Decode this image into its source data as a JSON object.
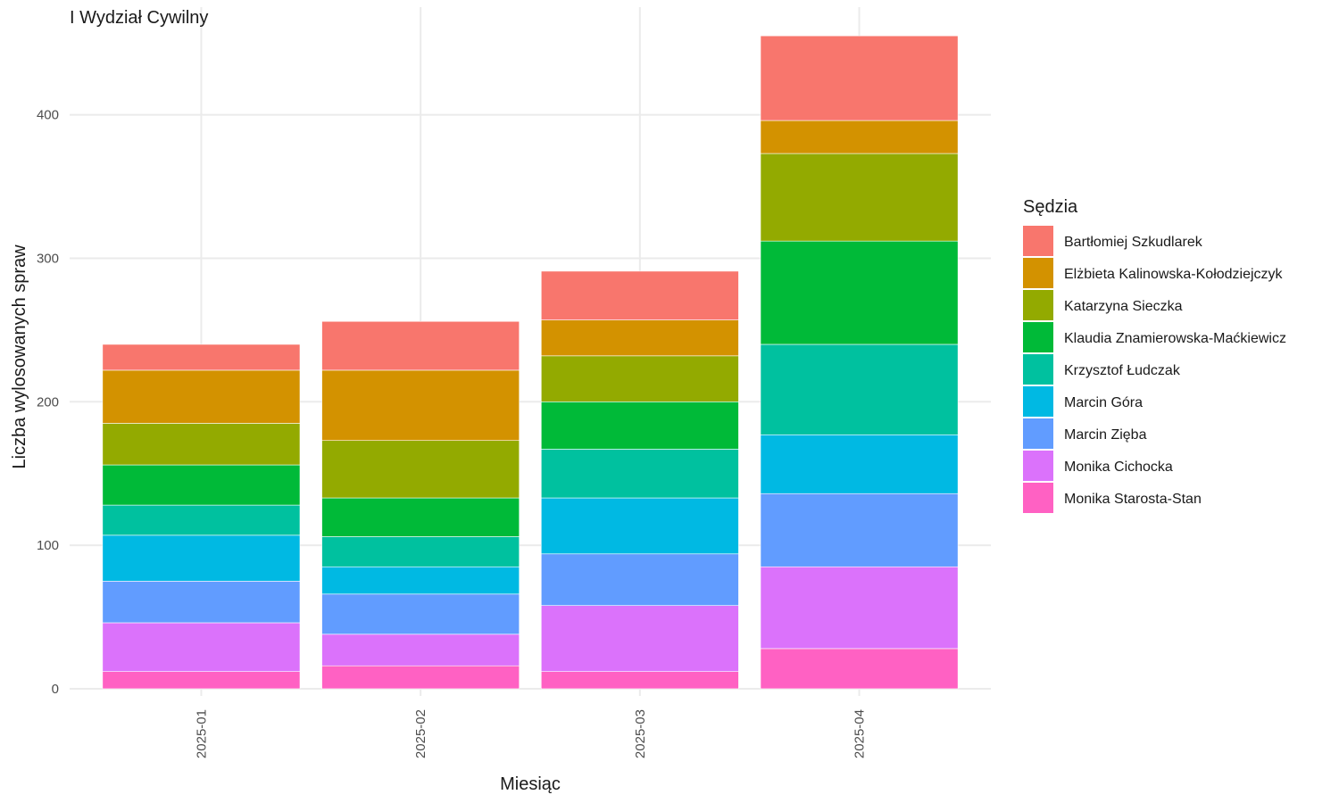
{
  "chart_data": {
    "type": "bar",
    "stacked": true,
    "title": "I Wydział Cywilny",
    "xlabel": "Miesiąc",
    "ylabel": "Liczba wylosowanych spraw",
    "categories": [
      "2025-01",
      "2025-02",
      "2025-03",
      "2025-04"
    ],
    "ylim": [
      -5,
      475
    ],
    "yticks": [
      0,
      100,
      200,
      300,
      400
    ],
    "legend_title": "Sędzia",
    "legend_position": "right",
    "grid": true,
    "series": [
      {
        "name": "Monika Starosta-Stan",
        "color": "#FF61C3",
        "values": [
          12,
          16,
          12,
          28
        ]
      },
      {
        "name": "Monika Cichocka",
        "color": "#DB72FB",
        "values": [
          34,
          22,
          46,
          57
        ]
      },
      {
        "name": "Marcin Zięba",
        "color": "#619CFF",
        "values": [
          29,
          28,
          36,
          51
        ]
      },
      {
        "name": "Marcin Góra",
        "color": "#00B9E3",
        "values": [
          32,
          19,
          39,
          41
        ]
      },
      {
        "name": "Krzysztof Łudczak",
        "color": "#00C19F",
        "values": [
          21,
          21,
          34,
          63
        ]
      },
      {
        "name": "Klaudia Znamierowska-Maćkiewicz",
        "color": "#00BA38",
        "values": [
          28,
          27,
          33,
          72
        ]
      },
      {
        "name": "Katarzyna Sieczka",
        "color": "#93AA00",
        "values": [
          29,
          40,
          32,
          61
        ]
      },
      {
        "name": "Elżbieta Kalinowska-Kołodziejczyk",
        "color": "#D39200",
        "values": [
          37,
          49,
          25,
          23
        ]
      },
      {
        "name": "Bartłomiej Szkudlarek",
        "color": "#F8766D",
        "values": [
          18,
          34,
          34,
          59
        ]
      }
    ]
  }
}
